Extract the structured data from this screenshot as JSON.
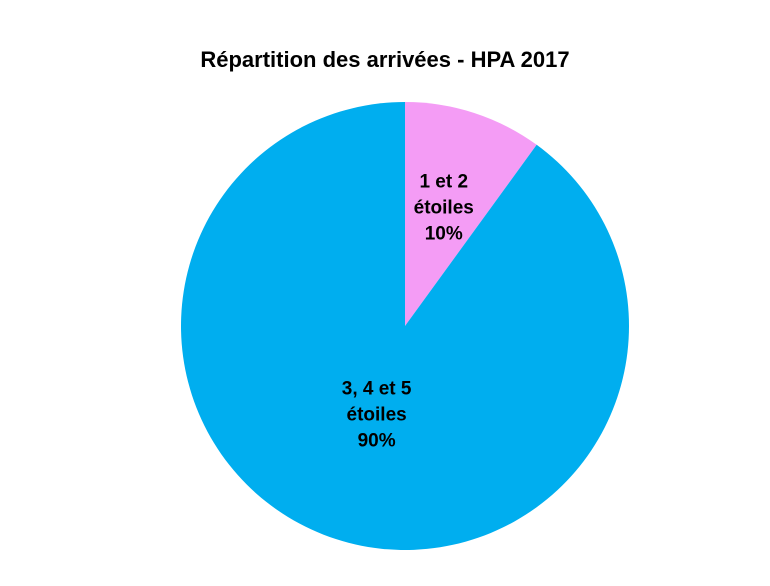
{
  "chart_data": {
    "type": "pie",
    "title": "Répartition des arrivées - HPA 2017",
    "slices": [
      {
        "label_lines": [
          "1 et 2",
          "étoiles"
        ],
        "value": 10,
        "percent_label": "10%",
        "color": "#F49CF5"
      },
      {
        "label_lines": [
          "3, 4 et 5",
          "étoiles"
        ],
        "value": 90,
        "percent_label": "90%",
        "color": "#00AEEF"
      }
    ],
    "start_angle_deg": 0,
    "direction": "clockwise",
    "legend": "none",
    "labels_position": "inside"
  }
}
